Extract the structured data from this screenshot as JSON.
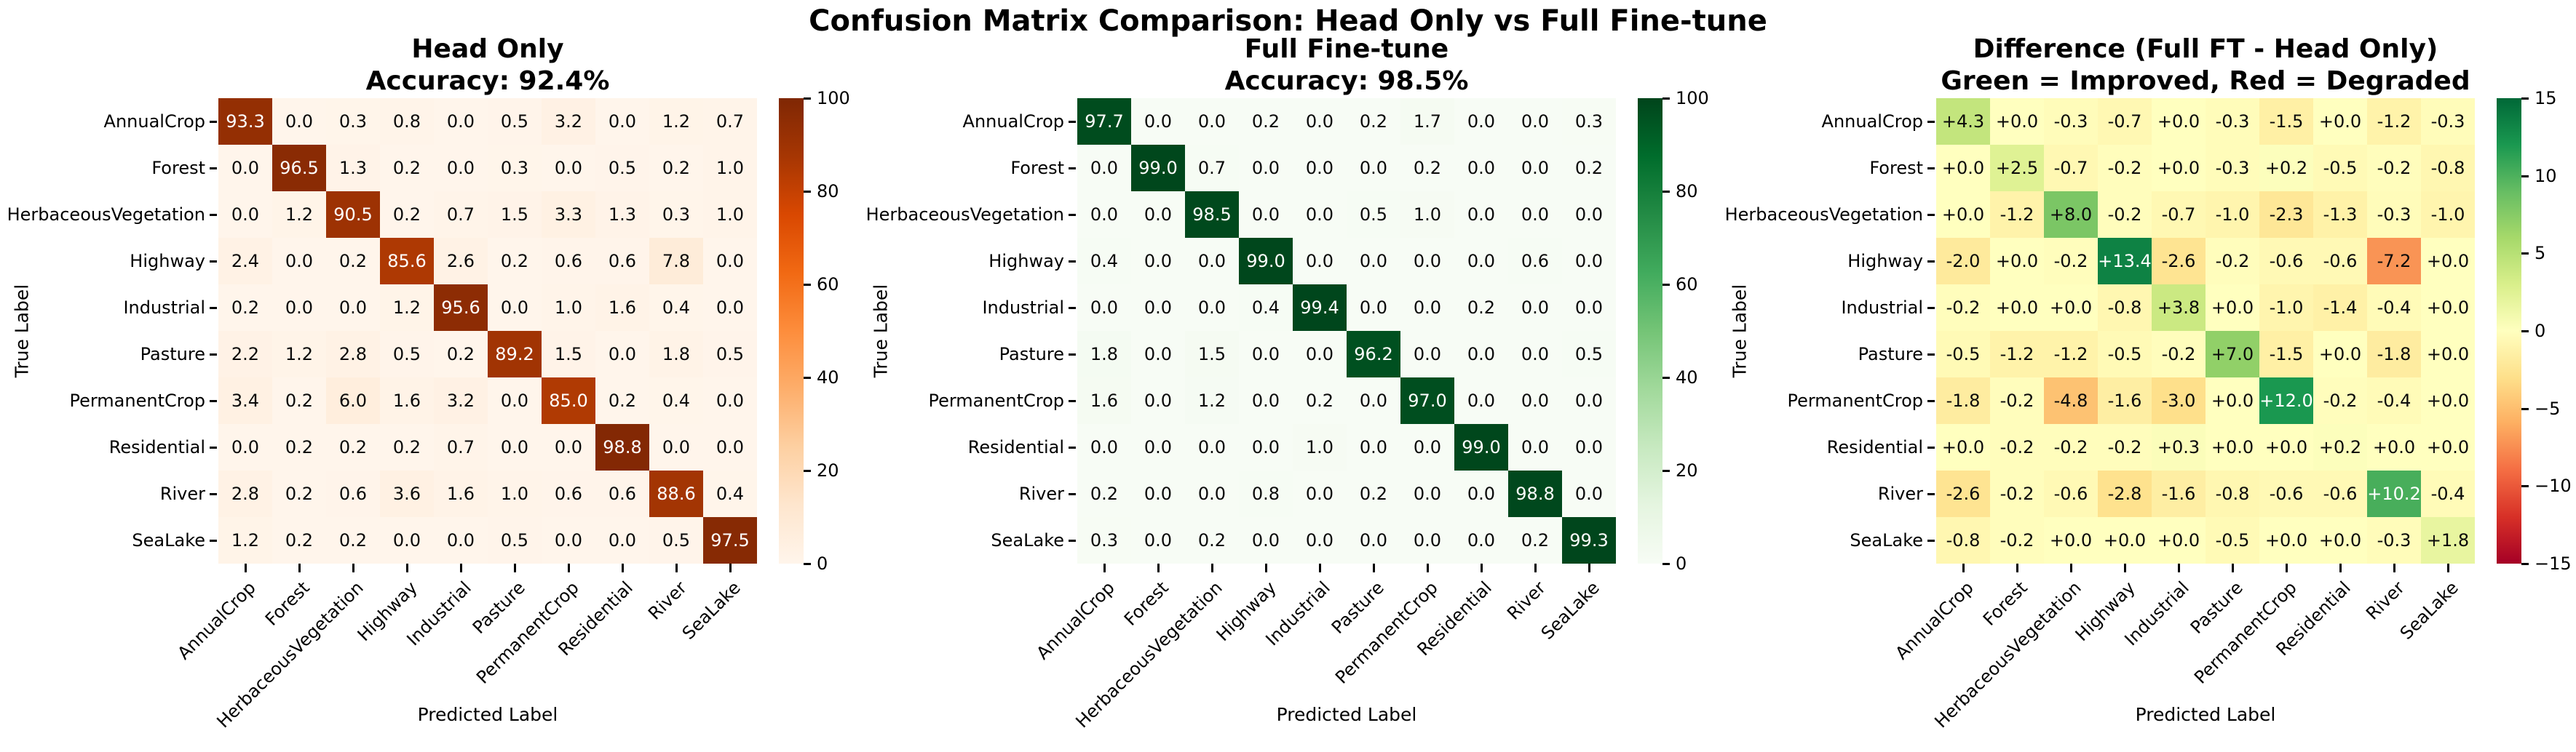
{
  "figure": {
    "suptitle": "Confusion Matrix Comparison: Head Only vs Full Fine-tune"
  },
  "shared": {
    "xlabel": "Predicted Label",
    "ylabel": "True Label"
  },
  "colors": {
    "background": "#ffffff",
    "annotation_light": "#ffffff",
    "annotation_dark": "#0a0a0a",
    "tick_color": "#000000"
  },
  "colormaps": {
    "Oranges": [
      "#fff5eb",
      "#fee6ce",
      "#fdd0a2",
      "#fdae6b",
      "#fd8d3c",
      "#f16913",
      "#d94801",
      "#a63603",
      "#7f2704"
    ],
    "Greens": [
      "#f7fcf5",
      "#e5f5e0",
      "#c7e9c0",
      "#a1d99b",
      "#74c476",
      "#41ab5d",
      "#238b45",
      "#006d2c",
      "#00441b"
    ],
    "RdYlGn": [
      "#a50026",
      "#d73027",
      "#f46d43",
      "#fdae61",
      "#fee08b",
      "#ffffbf",
      "#d9ef8b",
      "#a6d96a",
      "#66bd63",
      "#1a9850",
      "#006837"
    ]
  },
  "chart_data": [
    {
      "type": "heatmap",
      "title": "Head Only",
      "subtitle": "Accuracy: 92.4%",
      "colormap": "Oranges",
      "vmin": 0,
      "vmax": 100,
      "colorbar_ticks": [
        100,
        80,
        60,
        40,
        20,
        0
      ],
      "value_format": "plain",
      "categories": [
        "AnnualCrop",
        "Forest",
        "HerbaceousVegetation",
        "Highway",
        "Industrial",
        "Pasture",
        "PermanentCrop",
        "Residential",
        "River",
        "SeaLake"
      ],
      "values": [
        [
          93.3,
          0.0,
          0.3,
          0.8,
          0.0,
          0.5,
          3.2,
          0.0,
          1.2,
          0.7
        ],
        [
          0.0,
          96.5,
          1.3,
          0.2,
          0.0,
          0.3,
          0.0,
          0.5,
          0.2,
          1.0
        ],
        [
          0.0,
          1.2,
          90.5,
          0.2,
          0.7,
          1.5,
          3.3,
          1.3,
          0.3,
          1.0
        ],
        [
          2.4,
          0.0,
          0.2,
          85.6,
          2.6,
          0.2,
          0.6,
          0.6,
          7.8,
          0.0
        ],
        [
          0.2,
          0.0,
          0.0,
          1.2,
          95.6,
          0.0,
          1.0,
          1.6,
          0.4,
          0.0
        ],
        [
          2.2,
          1.2,
          2.8,
          0.5,
          0.2,
          89.2,
          1.5,
          0.0,
          1.8,
          0.5
        ],
        [
          3.4,
          0.2,
          6.0,
          1.6,
          3.2,
          0.0,
          85.0,
          0.2,
          0.4,
          0.0
        ],
        [
          0.0,
          0.2,
          0.2,
          0.2,
          0.7,
          0.0,
          0.0,
          98.8,
          0.0,
          0.0
        ],
        [
          2.8,
          0.2,
          0.6,
          3.6,
          1.6,
          1.0,
          0.6,
          0.6,
          88.6,
          0.4
        ],
        [
          1.2,
          0.2,
          0.2,
          0.0,
          0.0,
          0.5,
          0.0,
          0.0,
          0.5,
          97.5
        ]
      ]
    },
    {
      "type": "heatmap",
      "title": "Full Fine-tune",
      "subtitle": "Accuracy: 98.5%",
      "colormap": "Greens",
      "vmin": 0,
      "vmax": 100,
      "colorbar_ticks": [
        100,
        80,
        60,
        40,
        20,
        0
      ],
      "value_format": "plain",
      "categories": [
        "AnnualCrop",
        "Forest",
        "HerbaceousVegetation",
        "Highway",
        "Industrial",
        "Pasture",
        "PermanentCrop",
        "Residential",
        "River",
        "SeaLake"
      ],
      "values": [
        [
          97.7,
          0.0,
          0.0,
          0.2,
          0.0,
          0.2,
          1.7,
          0.0,
          0.0,
          0.3
        ],
        [
          0.0,
          99.0,
          0.7,
          0.0,
          0.0,
          0.0,
          0.2,
          0.0,
          0.0,
          0.2
        ],
        [
          0.0,
          0.0,
          98.5,
          0.0,
          0.0,
          0.5,
          1.0,
          0.0,
          0.0,
          0.0
        ],
        [
          0.4,
          0.0,
          0.0,
          99.0,
          0.0,
          0.0,
          0.0,
          0.0,
          0.6,
          0.0
        ],
        [
          0.0,
          0.0,
          0.0,
          0.4,
          99.4,
          0.0,
          0.0,
          0.2,
          0.0,
          0.0
        ],
        [
          1.8,
          0.0,
          1.5,
          0.0,
          0.0,
          96.2,
          0.0,
          0.0,
          0.0,
          0.5
        ],
        [
          1.6,
          0.0,
          1.2,
          0.0,
          0.2,
          0.0,
          97.0,
          0.0,
          0.0,
          0.0
        ],
        [
          0.0,
          0.0,
          0.0,
          0.0,
          1.0,
          0.0,
          0.0,
          99.0,
          0.0,
          0.0
        ],
        [
          0.2,
          0.0,
          0.0,
          0.8,
          0.0,
          0.2,
          0.0,
          0.0,
          98.8,
          0.0
        ],
        [
          0.3,
          0.0,
          0.2,
          0.0,
          0.0,
          0.0,
          0.0,
          0.0,
          0.2,
          99.3
        ]
      ]
    },
    {
      "type": "heatmap",
      "title": "Difference (Full FT - Head Only)",
      "subtitle": "Green = Improved, Red = Degraded",
      "colormap": "RdYlGn",
      "vmin": -15,
      "vmax": 15,
      "colorbar_ticks": [
        15,
        10,
        5,
        0,
        -5,
        -10,
        -15
      ],
      "value_format": "signed",
      "categories": [
        "AnnualCrop",
        "Forest",
        "HerbaceousVegetation",
        "Highway",
        "Industrial",
        "Pasture",
        "PermanentCrop",
        "Residential",
        "River",
        "SeaLake"
      ],
      "values": [
        [
          4.3,
          0.0,
          -0.3,
          -0.7,
          0.0,
          -0.3,
          -1.5,
          0.0,
          -1.2,
          -0.3
        ],
        [
          0.0,
          2.5,
          -0.7,
          -0.2,
          0.0,
          -0.3,
          0.2,
          -0.5,
          -0.2,
          -0.8
        ],
        [
          0.0,
          -1.2,
          8.0,
          -0.2,
          -0.7,
          -1.0,
          -2.3,
          -1.3,
          -0.3,
          -1.0
        ],
        [
          -2.0,
          0.0,
          -0.2,
          13.4,
          -2.6,
          -0.2,
          -0.6,
          -0.6,
          -7.2,
          0.0
        ],
        [
          -0.2,
          0.0,
          0.0,
          -0.8,
          3.8,
          0.0,
          -1.0,
          -1.4,
          -0.4,
          0.0
        ],
        [
          -0.5,
          -1.2,
          -1.2,
          -0.5,
          -0.2,
          7.0,
          -1.5,
          0.0,
          -1.8,
          0.0
        ],
        [
          -1.8,
          -0.2,
          -4.8,
          -1.6,
          -3.0,
          0.0,
          12.0,
          -0.2,
          -0.4,
          0.0
        ],
        [
          0.0,
          -0.2,
          -0.2,
          -0.2,
          0.3,
          0.0,
          0.0,
          0.2,
          0.0,
          0.0
        ],
        [
          -2.6,
          -0.2,
          -0.6,
          -2.8,
          -1.6,
          -0.8,
          -0.6,
          -0.6,
          10.2,
          -0.4
        ],
        [
          -0.8,
          -0.2,
          0.0,
          0.0,
          0.0,
          -0.5,
          0.0,
          0.0,
          -0.3,
          1.8
        ]
      ]
    }
  ]
}
